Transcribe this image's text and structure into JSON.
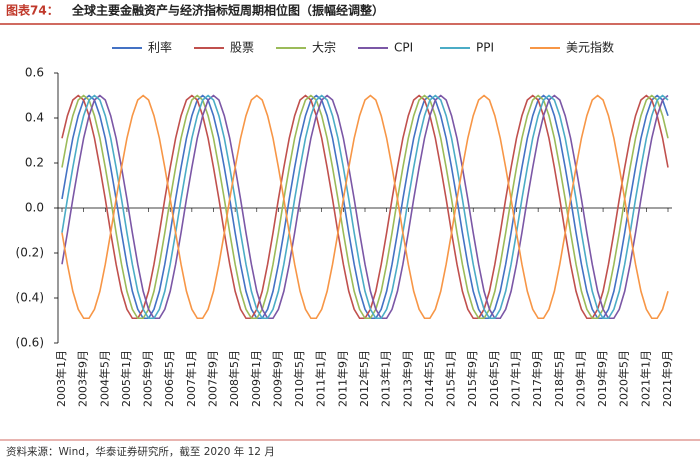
{
  "chart_data": {
    "type": "line",
    "figure_label": "图表74：",
    "title": "全球主要金融资产与经济指标短周期相位图（振幅经调整）",
    "source": "资料来源：Wind，华泰证券研究所，截至 2020 年 12 月",
    "categories": [
      "2003年1月",
      null,
      null,
      null,
      "2003年9月",
      null,
      null,
      null,
      "2004年5月",
      null,
      null,
      null,
      "2005年1月",
      null,
      null,
      null,
      "2005年9月",
      null,
      null,
      null,
      "2006年5月",
      null,
      null,
      null,
      "2007年1月",
      null,
      null,
      null,
      "2007年9月",
      null,
      null,
      null,
      "2008年5月",
      null,
      null,
      null,
      "2009年1月",
      null,
      null,
      null,
      "2009年9月",
      null,
      null,
      null,
      "2010年5月",
      null,
      null,
      null,
      "2011年1月",
      null,
      null,
      null,
      "2011年9月",
      null,
      null,
      null,
      "2012年5月",
      null,
      null,
      null,
      "2013年1月",
      null,
      null,
      null,
      "2013年9月",
      null,
      null,
      null,
      "2014年5月",
      null,
      null,
      null,
      "2015年1月",
      null,
      null,
      null,
      "2015年9月",
      null,
      null,
      null,
      "2016年5月",
      null,
      null,
      null,
      "2017年1月",
      null,
      null,
      null,
      "2017年9月",
      null,
      null,
      null,
      "2018年5月",
      null,
      null,
      null,
      "2019年1月",
      null,
      null,
      null,
      "2019年9月",
      null,
      null,
      null,
      "2020年5月",
      null,
      null,
      null,
      "2021年1月",
      null,
      null,
      null,
      "2021年9月"
    ],
    "series": [
      {
        "name": "利率",
        "color": "#4472c4",
        "values": [
          0.04,
          0.18,
          0.31,
          0.41,
          0.48,
          0.5,
          0.48,
          0.41,
          0.31,
          0.18,
          0.04,
          -0.11,
          -0.25,
          -0.37,
          -0.45,
          -0.49,
          -0.49,
          -0.45,
          -0.37,
          -0.25,
          -0.11,
          0.04,
          0.18,
          0.31,
          0.41,
          0.48,
          0.5,
          0.48,
          0.41,
          0.31,
          0.18,
          0.04,
          -0.11,
          -0.25,
          -0.37,
          -0.45,
          -0.49,
          -0.49,
          -0.45,
          -0.37,
          -0.25,
          -0.11,
          0.04,
          0.18,
          0.31,
          0.41,
          0.48,
          0.5,
          0.48,
          0.41,
          0.31,
          0.18,
          0.04,
          -0.11,
          -0.25,
          -0.37,
          -0.45,
          -0.49,
          -0.49,
          -0.45,
          -0.37,
          -0.25,
          -0.11,
          0.04,
          0.18,
          0.31,
          0.41,
          0.48,
          0.5,
          0.48,
          0.41,
          0.31,
          0.18,
          0.04,
          -0.11,
          -0.25,
          -0.37,
          -0.45,
          -0.49,
          -0.49,
          -0.45,
          -0.37,
          -0.25,
          -0.11,
          0.04,
          0.18,
          0.31,
          0.41,
          0.48,
          0.5,
          0.48,
          0.41,
          0.31,
          0.18,
          0.04,
          -0.11,
          -0.25,
          -0.37,
          -0.45,
          -0.49,
          -0.49,
          -0.45,
          -0.37,
          -0.25,
          -0.11,
          0.04,
          0.18,
          0.31,
          0.41,
          0.48,
          0.5,
          0.48,
          0.41
        ]
      },
      {
        "name": "股票",
        "color": "#c0504d",
        "values": [
          0.31,
          0.41,
          0.48,
          0.5,
          0.48,
          0.41,
          0.31,
          0.18,
          0.04,
          -0.11,
          -0.25,
          -0.37,
          -0.45,
          -0.49,
          -0.49,
          -0.45,
          -0.37,
          -0.25,
          -0.11,
          0.04,
          0.18,
          0.31,
          0.41,
          0.48,
          0.5,
          0.48,
          0.41,
          0.31,
          0.18,
          0.04,
          -0.11,
          -0.25,
          -0.37,
          -0.45,
          -0.49,
          -0.49,
          -0.45,
          -0.37,
          -0.25,
          -0.11,
          0.04,
          0.18,
          0.31,
          0.41,
          0.48,
          0.5,
          0.48,
          0.41,
          0.31,
          0.18,
          0.04,
          -0.11,
          -0.25,
          -0.37,
          -0.45,
          -0.49,
          -0.49,
          -0.45,
          -0.37,
          -0.25,
          -0.11,
          0.04,
          0.18,
          0.31,
          0.41,
          0.48,
          0.5,
          0.48,
          0.41,
          0.31,
          0.18,
          0.04,
          -0.11,
          -0.25,
          -0.37,
          -0.45,
          -0.49,
          -0.49,
          -0.45,
          -0.37,
          -0.25,
          -0.11,
          0.04,
          0.18,
          0.31,
          0.41,
          0.48,
          0.5,
          0.48,
          0.41,
          0.31,
          0.18,
          0.04,
          -0.11,
          -0.25,
          -0.37,
          -0.45,
          -0.49,
          -0.49,
          -0.45,
          -0.37,
          -0.25,
          -0.11,
          0.04,
          0.18,
          0.31,
          0.41,
          0.48,
          0.5,
          0.48,
          0.41,
          0.31,
          0.18
        ]
      },
      {
        "name": "大宗",
        "color": "#9bbb59",
        "values": [
          0.18,
          0.31,
          0.41,
          0.48,
          0.5,
          0.48,
          0.41,
          0.31,
          0.18,
          0.04,
          -0.11,
          -0.25,
          -0.37,
          -0.45,
          -0.49,
          -0.49,
          -0.45,
          -0.37,
          -0.25,
          -0.11,
          0.04,
          0.18,
          0.31,
          0.41,
          0.48,
          0.5,
          0.48,
          0.41,
          0.31,
          0.18,
          0.04,
          -0.11,
          -0.25,
          -0.37,
          -0.45,
          -0.49,
          -0.49,
          -0.45,
          -0.37,
          -0.25,
          -0.11,
          0.04,
          0.18,
          0.31,
          0.41,
          0.48,
          0.5,
          0.48,
          0.41,
          0.31,
          0.18,
          0.04,
          -0.11,
          -0.25,
          -0.37,
          -0.45,
          -0.49,
          -0.49,
          -0.45,
          -0.37,
          -0.25,
          -0.11,
          0.04,
          0.18,
          0.31,
          0.41,
          0.48,
          0.5,
          0.48,
          0.41,
          0.31,
          0.18,
          0.04,
          -0.11,
          -0.25,
          -0.37,
          -0.45,
          -0.49,
          -0.49,
          -0.45,
          -0.37,
          -0.25,
          -0.11,
          0.04,
          0.18,
          0.31,
          0.41,
          0.48,
          0.5,
          0.48,
          0.41,
          0.31,
          0.18,
          0.04,
          -0.11,
          -0.25,
          -0.37,
          -0.45,
          -0.49,
          -0.49,
          -0.45,
          -0.37,
          -0.25,
          -0.11,
          0.04,
          0.18,
          0.31,
          0.41,
          0.48,
          0.5,
          0.48,
          0.41,
          0.31
        ]
      },
      {
        "name": "CPI",
        "color": "#7b57a6",
        "values": [
          -0.25,
          -0.11,
          0.04,
          0.18,
          0.31,
          0.41,
          0.48,
          0.5,
          0.48,
          0.41,
          0.31,
          0.18,
          0.04,
          -0.11,
          -0.25,
          -0.37,
          -0.45,
          -0.49,
          -0.49,
          -0.45,
          -0.37,
          -0.25,
          -0.11,
          0.04,
          0.18,
          0.31,
          0.41,
          0.48,
          0.5,
          0.48,
          0.41,
          0.31,
          0.18,
          0.04,
          -0.11,
          -0.25,
          -0.37,
          -0.45,
          -0.49,
          -0.49,
          -0.45,
          -0.37,
          -0.25,
          -0.11,
          0.04,
          0.18,
          0.31,
          0.41,
          0.48,
          0.5,
          0.48,
          0.41,
          0.31,
          0.18,
          0.04,
          -0.11,
          -0.25,
          -0.37,
          -0.45,
          -0.49,
          -0.49,
          -0.45,
          -0.37,
          -0.25,
          -0.11,
          0.04,
          0.18,
          0.31,
          0.41,
          0.48,
          0.5,
          0.48,
          0.41,
          0.31,
          0.18,
          0.04,
          -0.11,
          -0.25,
          -0.37,
          -0.45,
          -0.49,
          -0.49,
          -0.45,
          -0.37,
          -0.25,
          -0.11,
          0.04,
          0.18,
          0.31,
          0.41,
          0.48,
          0.5,
          0.48,
          0.41,
          0.31,
          0.18,
          0.04,
          -0.11,
          -0.25,
          -0.37,
          -0.45,
          -0.49,
          -0.49,
          -0.45,
          -0.37,
          -0.25,
          -0.11,
          0.04,
          0.18,
          0.31,
          0.41,
          0.48,
          0.5
        ]
      },
      {
        "name": "PPI",
        "color": "#4bacc6",
        "values": [
          -0.11,
          0.04,
          0.18,
          0.31,
          0.41,
          0.48,
          0.5,
          0.48,
          0.41,
          0.31,
          0.18,
          0.04,
          -0.11,
          -0.25,
          -0.37,
          -0.45,
          -0.49,
          -0.49,
          -0.45,
          -0.37,
          -0.25,
          -0.11,
          0.04,
          0.18,
          0.31,
          0.41,
          0.48,
          0.5,
          0.48,
          0.41,
          0.31,
          0.18,
          0.04,
          -0.11,
          -0.25,
          -0.37,
          -0.45,
          -0.49,
          -0.49,
          -0.45,
          -0.37,
          -0.25,
          -0.11,
          0.04,
          0.18,
          0.31,
          0.41,
          0.48,
          0.5,
          0.48,
          0.41,
          0.31,
          0.18,
          0.04,
          -0.11,
          -0.25,
          -0.37,
          -0.45,
          -0.49,
          -0.49,
          -0.45,
          -0.37,
          -0.25,
          -0.11,
          0.04,
          0.18,
          0.31,
          0.41,
          0.48,
          0.5,
          0.48,
          0.41,
          0.31,
          0.18,
          0.04,
          -0.11,
          -0.25,
          -0.37,
          -0.45,
          -0.49,
          -0.49,
          -0.45,
          -0.37,
          -0.25,
          -0.11,
          0.04,
          0.18,
          0.31,
          0.41,
          0.48,
          0.5,
          0.48,
          0.41,
          0.31,
          0.18,
          0.04,
          -0.11,
          -0.25,
          -0.37,
          -0.45,
          -0.49,
          -0.49,
          -0.45,
          -0.37,
          -0.25,
          -0.11,
          0.04,
          0.18,
          0.31,
          0.41,
          0.48,
          0.5,
          0.48
        ]
      },
      {
        "name": "美元指数",
        "color": "#f79646",
        "values": [
          -0.11,
          -0.25,
          -0.37,
          -0.45,
          -0.49,
          -0.49,
          -0.45,
          -0.37,
          -0.25,
          -0.11,
          0.04,
          0.18,
          0.31,
          0.41,
          0.48,
          0.5,
          0.48,
          0.41,
          0.31,
          0.18,
          0.04,
          -0.11,
          -0.25,
          -0.37,
          -0.45,
          -0.49,
          -0.49,
          -0.45,
          -0.37,
          -0.25,
          -0.11,
          0.04,
          0.18,
          0.31,
          0.41,
          0.48,
          0.5,
          0.48,
          0.41,
          0.31,
          0.18,
          0.04,
          -0.11,
          -0.25,
          -0.37,
          -0.45,
          -0.49,
          -0.49,
          -0.45,
          -0.37,
          -0.25,
          -0.11,
          0.04,
          0.18,
          0.31,
          0.41,
          0.48,
          0.5,
          0.48,
          0.41,
          0.31,
          0.18,
          0.04,
          -0.11,
          -0.25,
          -0.37,
          -0.45,
          -0.49,
          -0.49,
          -0.45,
          -0.37,
          -0.25,
          -0.11,
          0.04,
          0.18,
          0.31,
          0.41,
          0.48,
          0.5,
          0.48,
          0.41,
          0.31,
          0.18,
          0.04,
          -0.11,
          -0.25,
          -0.37,
          -0.45,
          -0.49,
          -0.49,
          -0.45,
          -0.37,
          -0.25,
          -0.11,
          0.04,
          0.18,
          0.31,
          0.41,
          0.48,
          0.5,
          0.48,
          0.41,
          0.31,
          0.18,
          0.04,
          -0.11,
          -0.25,
          -0.37,
          -0.45,
          -0.49,
          -0.49,
          -0.45,
          -0.37
        ]
      }
    ],
    "ylim": [
      -0.6,
      0.6
    ],
    "yticks": [
      {
        "value": -0.6,
        "label": "(0.6)"
      },
      {
        "value": -0.4,
        "label": "(0.4)"
      },
      {
        "value": -0.2,
        "label": "(0.2)"
      },
      {
        "value": 0,
        "label": "0.0"
      },
      0.2,
      0.4,
      0.6
    ],
    "legend": "top",
    "grid": false
  }
}
